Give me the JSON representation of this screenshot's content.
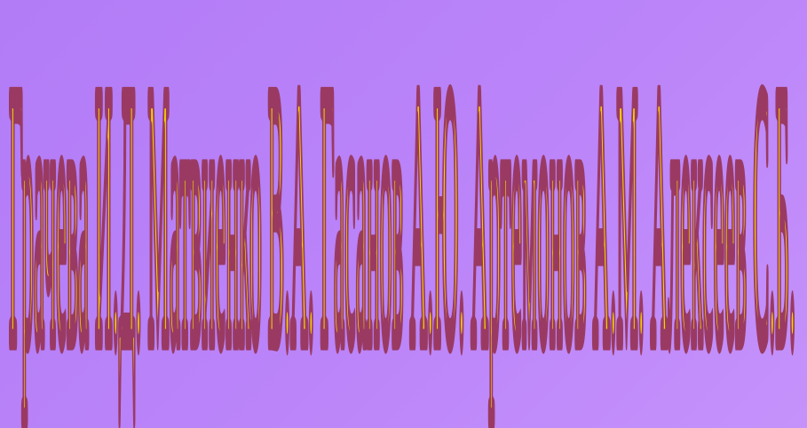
{
  "slide": {
    "background_color": "#b983f9",
    "text_fill_color": "#f5d300",
    "text_outline_color": "#9a3a63",
    "wordart_text": "Грачева И.Д. Матвиенко В.А. Гасанов А.Ю. Артемонов А.М. Алексеев С.Б."
  }
}
